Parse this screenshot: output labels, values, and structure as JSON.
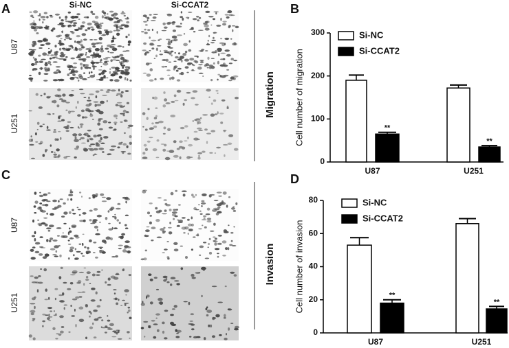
{
  "panels": {
    "labels": [
      "A",
      "B",
      "C",
      "D"
    ],
    "columns": [
      "Si-NC",
      "Si-CCAT2"
    ],
    "rows": [
      "U87",
      "U251"
    ],
    "sections": [
      "Migration",
      "Invasion"
    ]
  },
  "chart_data": [
    {
      "type": "bar",
      "y_label": "Cell number of migration",
      "categories": [
        "U87",
        "U251"
      ],
      "ylim": [
        0,
        300
      ],
      "yticks": [
        0,
        100,
        200,
        300
      ],
      "series": [
        {
          "name": "Si-NC",
          "color": "#ffffff",
          "values": [
            190,
            172
          ],
          "errors": [
            12,
            7
          ]
        },
        {
          "name": "Si-CCAT2",
          "color": "#000000",
          "values": [
            65,
            35
          ],
          "errors": [
            4,
            3
          ],
          "significance": [
            "**",
            "**"
          ]
        }
      ]
    },
    {
      "type": "bar",
      "y_label": "Cell number of invasion",
      "categories": [
        "U87",
        "U251"
      ],
      "ylim": [
        0,
        80
      ],
      "yticks": [
        0,
        20,
        40,
        60,
        80
      ],
      "series": [
        {
          "name": "Si-NC",
          "color": "#ffffff",
          "values": [
            53,
            66
          ],
          "errors": [
            4.5,
            3
          ]
        },
        {
          "name": "Si-CCAT2",
          "color": "#000000",
          "values": [
            18,
            14.5
          ],
          "errors": [
            2,
            1.5
          ],
          "significance": [
            "**",
            "**"
          ]
        }
      ]
    }
  ]
}
